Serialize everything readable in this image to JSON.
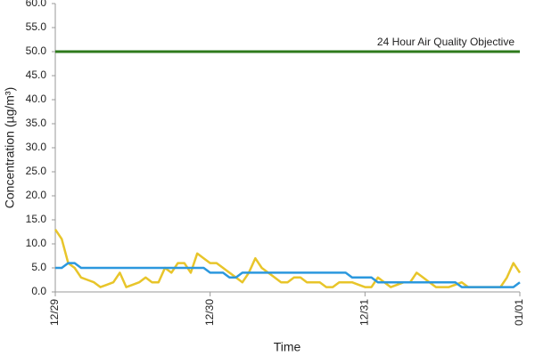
{
  "chart_data": {
    "type": "line",
    "y_label": "Concentration (µg/m³)",
    "x_label": "Time",
    "x": [
      0,
      1,
      2,
      3,
      4,
      5,
      6,
      7,
      8,
      9,
      10,
      11,
      12,
      13,
      14,
      15,
      16,
      17,
      18,
      19,
      20,
      21,
      22,
      23,
      24,
      25,
      26,
      27,
      28,
      29,
      30,
      31,
      32,
      33,
      34,
      35,
      36,
      37,
      38,
      39,
      40,
      41,
      42,
      43,
      44,
      45,
      46,
      47,
      48,
      49,
      50,
      51,
      52,
      53,
      54,
      55,
      56,
      57,
      58,
      59,
      60,
      61,
      62,
      63,
      64,
      65,
      66,
      67,
      68,
      69,
      70,
      71,
      72
    ],
    "series": [
      {
        "color": "#e8c52a",
        "values": [
          13,
          11,
          6,
          5,
          3,
          2.5,
          2,
          1,
          1.5,
          2,
          4,
          1,
          1.5,
          2,
          3,
          2,
          2,
          5,
          4,
          6,
          6,
          4,
          8,
          7,
          6,
          6,
          5,
          4,
          3,
          2,
          4,
          7,
          5,
          4,
          3,
          2,
          2,
          3,
          3,
          2,
          2,
          2,
          1,
          1,
          2,
          2,
          2,
          1.5,
          1,
          1,
          3,
          2,
          1,
          1.5,
          2,
          2,
          4,
          3,
          2,
          1,
          1,
          1,
          1.5,
          2,
          1,
          1,
          1,
          1,
          1,
          1,
          3,
          6,
          4
        ]
      },
      {
        "color": "#2b98de",
        "values": [
          5,
          5,
          6,
          6,
          5,
          5,
          5,
          5,
          5,
          5,
          5,
          5,
          5,
          5,
          5,
          5,
          5,
          5,
          5,
          5,
          5,
          5,
          5,
          5,
          4,
          4,
          4,
          3,
          3,
          4,
          4,
          4,
          4,
          4,
          4,
          4,
          4,
          4,
          4,
          4,
          4,
          4,
          4,
          4,
          4,
          4,
          3,
          3,
          3,
          3,
          2,
          2,
          2,
          2,
          2,
          2,
          2,
          2,
          2,
          2,
          2,
          2,
          2,
          1,
          1,
          1,
          1,
          1,
          1,
          1,
          1,
          1,
          2
        ]
      }
    ],
    "objective": {
      "label": "24 Hour Air Quality Objective",
      "value": 50,
      "color": "#2e7a1c"
    },
    "xlim": [
      0,
      72
    ],
    "xticks": [
      {
        "value": 0,
        "label": "12/29"
      },
      {
        "value": 24,
        "label": "12/30"
      },
      {
        "value": 48,
        "label": "12/31"
      },
      {
        "value": 72,
        "label": "01/01"
      }
    ],
    "ylim": [
      0,
      60
    ],
    "yticks": [
      {
        "value": 0,
        "label": "0.0"
      },
      {
        "value": 5,
        "label": "5.0"
      },
      {
        "value": 10,
        "label": "10.0"
      },
      {
        "value": 15,
        "label": "15.0"
      },
      {
        "value": 20,
        "label": "20.0"
      },
      {
        "value": 25,
        "label": "25.0"
      },
      {
        "value": 30,
        "label": "30.0"
      },
      {
        "value": 35,
        "label": "35.0"
      },
      {
        "value": 40,
        "label": "40.0"
      },
      {
        "value": 45,
        "label": "45.0"
      },
      {
        "value": 50,
        "label": "50.0"
      },
      {
        "value": 55,
        "label": "55.0"
      },
      {
        "value": 60,
        "label": "60.0"
      }
    ],
    "grid": false
  }
}
